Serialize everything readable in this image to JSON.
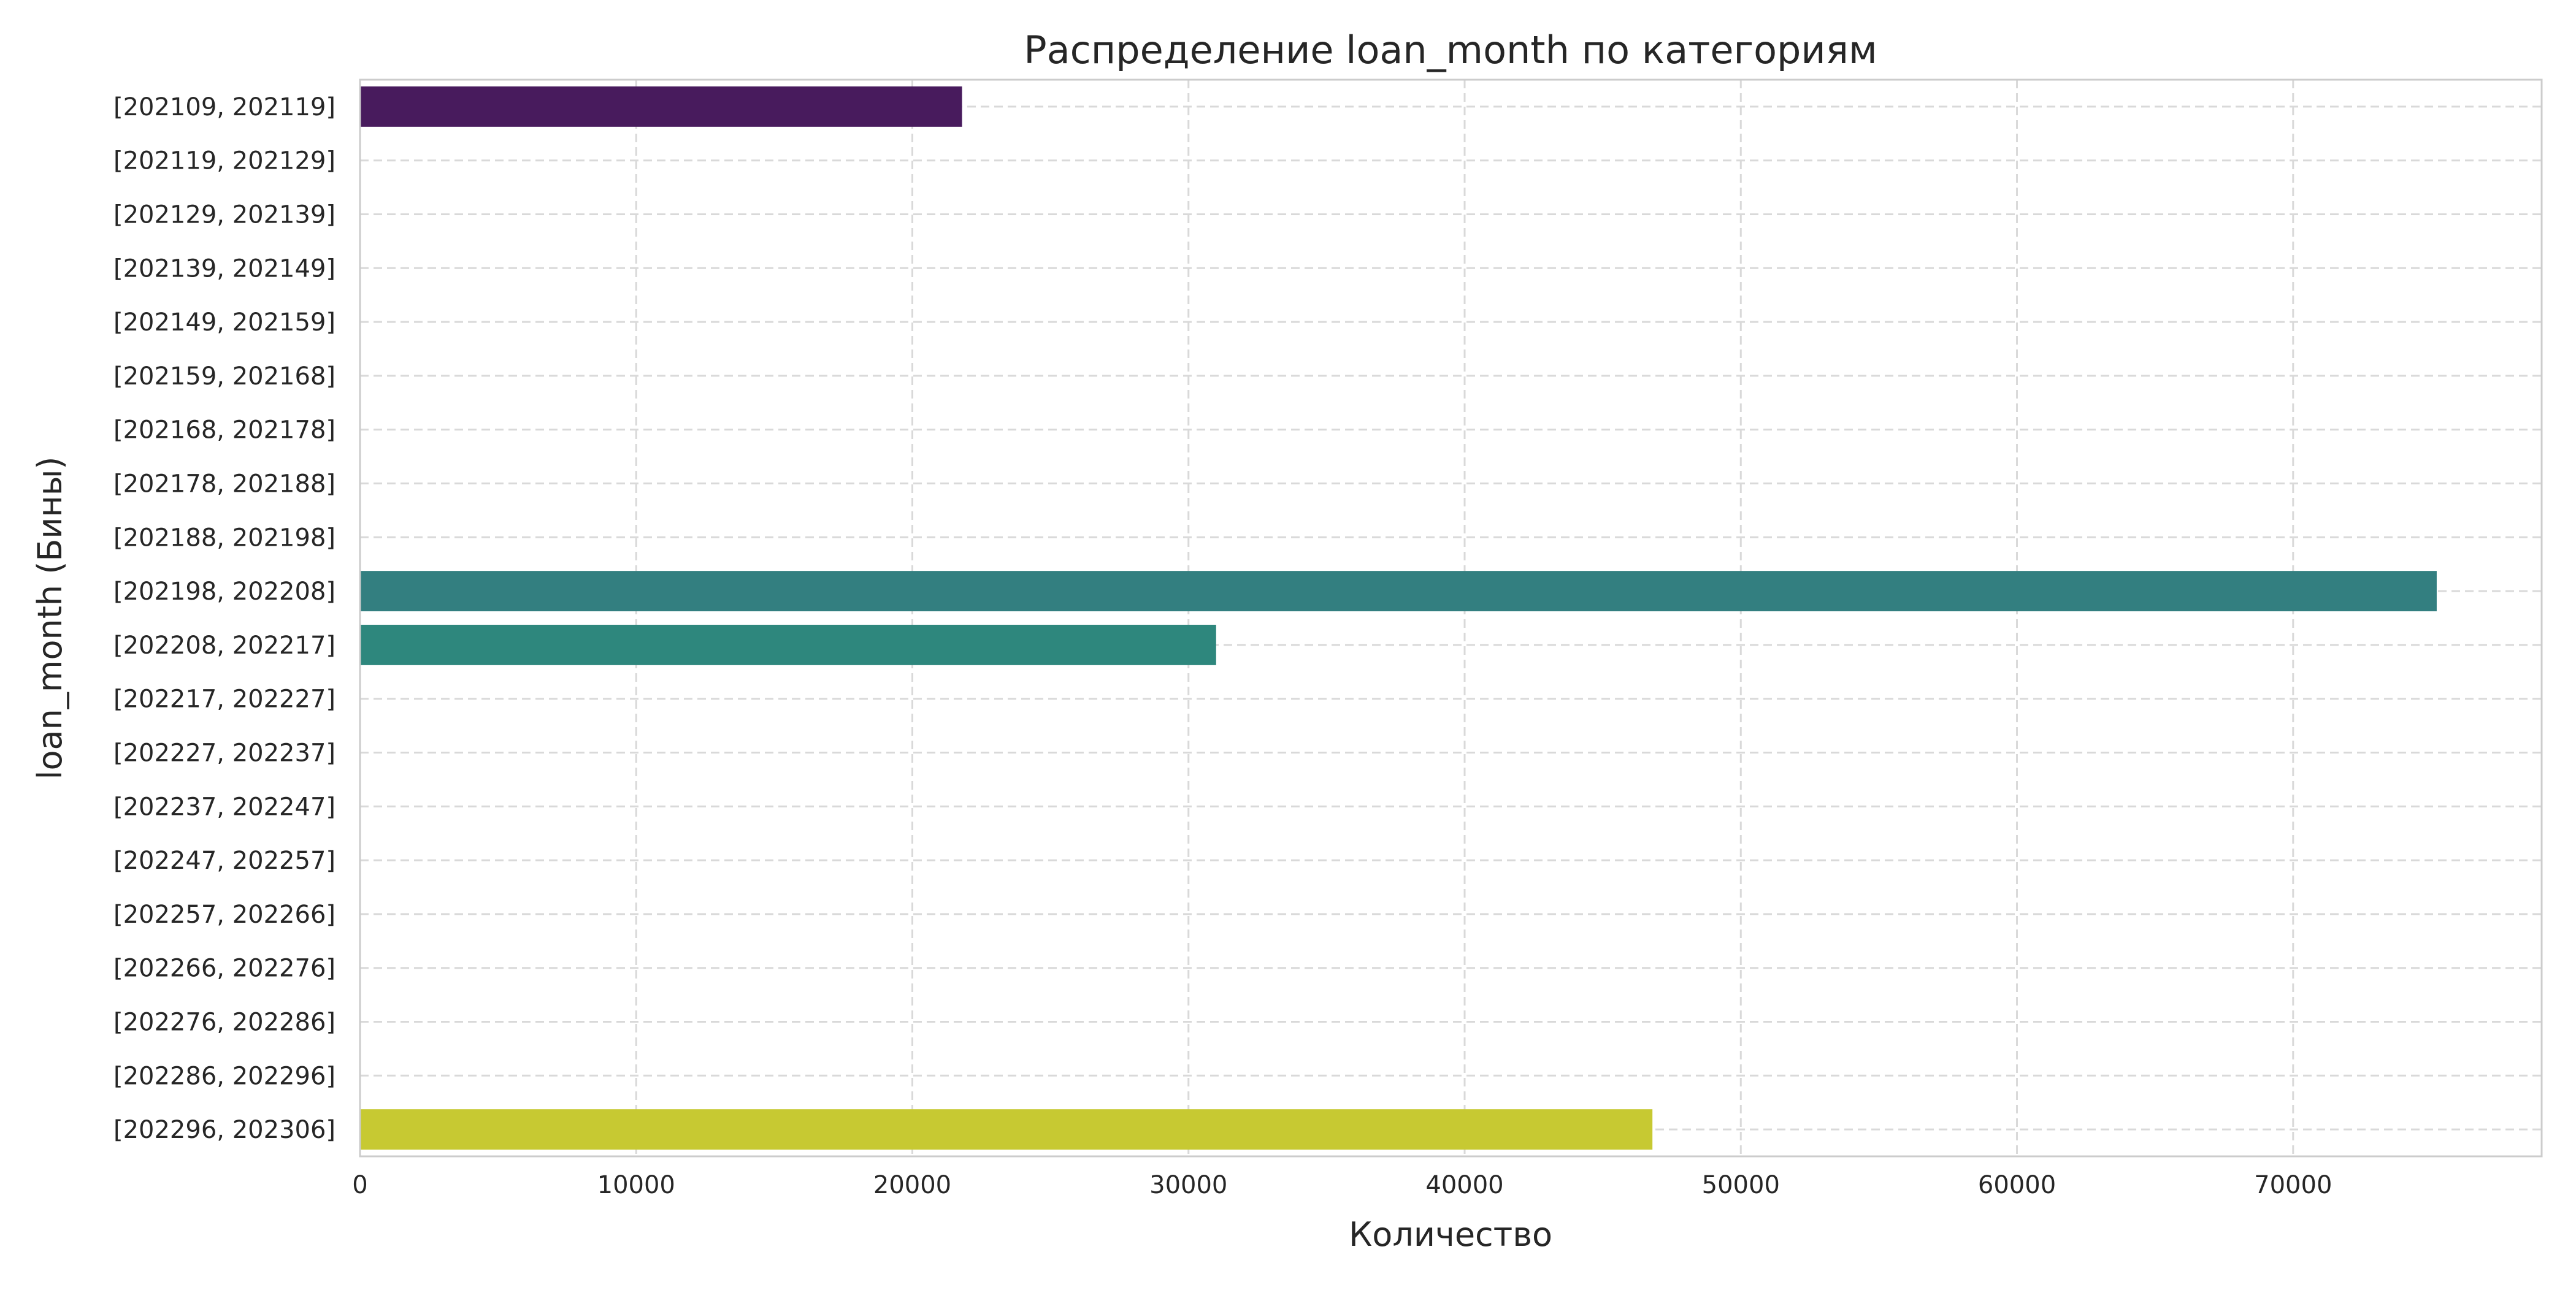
{
  "chart_data": {
    "type": "bar",
    "orientation": "horizontal",
    "title": "Распределение loan_month по категориям",
    "xlabel": "Количество",
    "ylabel": "loan_month (Бины)",
    "xlim": [
      0,
      79000
    ],
    "x_ticks": [
      0,
      10000,
      20000,
      30000,
      40000,
      50000,
      60000,
      70000
    ],
    "grid": true,
    "categories": [
      "[202109, 202119]",
      "[202119, 202129]",
      "[202129, 202139]",
      "[202139, 202149]",
      "[202149, 202159]",
      "[202159, 202168]",
      "[202168, 202178]",
      "[202178, 202188]",
      "[202188, 202198]",
      "[202198, 202208]",
      "[202208, 202217]",
      "[202217, 202227]",
      "[202227, 202237]",
      "[202237, 202247]",
      "[202247, 202257]",
      "[202257, 202266]",
      "[202266, 202276]",
      "[202276, 202286]",
      "[202286, 202296]",
      "[202296, 202306]"
    ],
    "values": [
      21800,
      0,
      0,
      0,
      0,
      0,
      0,
      0,
      0,
      75200,
      31000,
      0,
      0,
      0,
      0,
      0,
      0,
      0,
      0,
      46800
    ],
    "colors": [
      "#481b5d",
      "#472a6c",
      "#453581",
      "#3e4a89",
      "#375a8c",
      "#31688e",
      "#2b758e",
      "#26828e",
      "#228f8a",
      "#337f80",
      "#2e877d",
      "#28ae80",
      "#3bbb75",
      "#5ec962",
      "#7fd34e",
      "#a2da37",
      "#c2df23",
      "#d2e21b",
      "#e5e419",
      "#c7c932"
    ],
    "palette": "viridis"
  }
}
